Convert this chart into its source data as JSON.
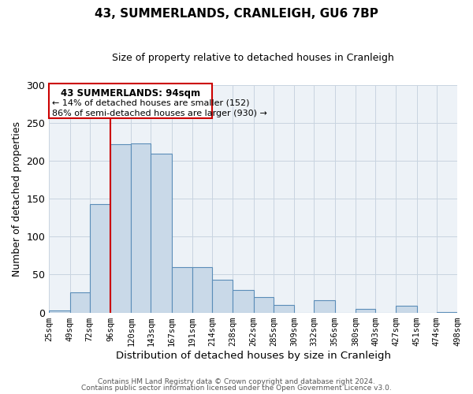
{
  "title": "43, SUMMERLANDS, CRANLEIGH, GU6 7BP",
  "subtitle": "Size of property relative to detached houses in Cranleigh",
  "xlabel": "Distribution of detached houses by size in Cranleigh",
  "ylabel": "Number of detached properties",
  "bin_labels": [
    "25sqm",
    "49sqm",
    "72sqm",
    "96sqm",
    "120sqm",
    "143sqm",
    "167sqm",
    "191sqm",
    "214sqm",
    "238sqm",
    "262sqm",
    "285sqm",
    "309sqm",
    "332sqm",
    "356sqm",
    "380sqm",
    "403sqm",
    "427sqm",
    "451sqm",
    "474sqm",
    "498sqm"
  ],
  "bar_values": [
    3,
    27,
    143,
    222,
    223,
    210,
    60,
    60,
    43,
    30,
    20,
    10,
    0,
    16,
    0,
    5,
    0,
    9,
    0,
    1
  ],
  "bar_color": "#c9d9e8",
  "bar_edge_color": "#5b8db8",
  "vline_x_index": 3,
  "vline_color": "#cc0000",
  "ylim": [
    0,
    300
  ],
  "yticks": [
    0,
    50,
    100,
    150,
    200,
    250,
    300
  ],
  "annotation_title": "43 SUMMERLANDS: 94sqm",
  "annotation_line1": "← 14% of detached houses are smaller (152)",
  "annotation_line2": "86% of semi-detached houses are larger (930) →",
  "annotation_box_color": "#ffffff",
  "annotation_box_edge": "#cc0000",
  "footer1": "Contains HM Land Registry data © Crown copyright and database right 2024.",
  "footer2": "Contains public sector information licensed under the Open Government Licence v3.0.",
  "background_color": "#edf2f7",
  "plot_background": "#ffffff",
  "grid_color": "#c8d4e0"
}
